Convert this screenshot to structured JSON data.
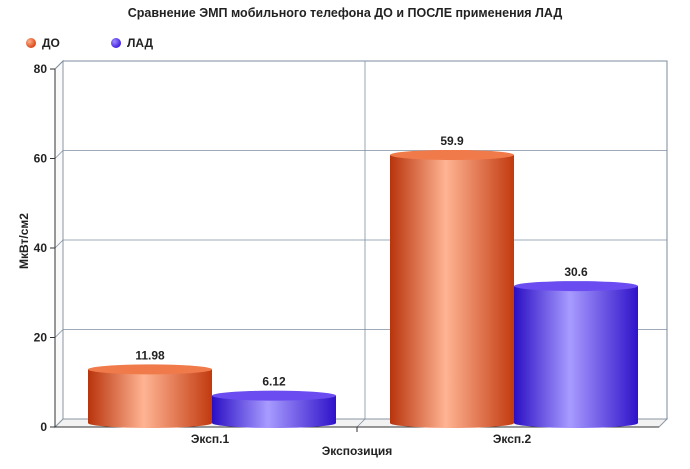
{
  "chart_data": {
    "type": "bar",
    "title": "Сравнение ЭМП  мобильного телефона ДО и ПОСЛЕ применения ЛАД",
    "xlabel": "Экспозиция",
    "ylabel": "МкВт/см2",
    "categories": [
      "Эксп.1",
      "Эксп.2"
    ],
    "series": [
      {
        "name": "ДО",
        "color": "#e8501e",
        "values": [
          11.98,
          59.9
        ],
        "labels": [
          "11.98",
          "59.9"
        ]
      },
      {
        "name": "ЛАД",
        "color": "#4422e8",
        "values": [
          6.12,
          30.6
        ],
        "labels": [
          "6.12",
          "30.6"
        ]
      }
    ],
    "ylim": [
      0,
      80
    ],
    "yticks": [
      0,
      20,
      40,
      60,
      80
    ],
    "grid": true,
    "legend": "top-left"
  }
}
